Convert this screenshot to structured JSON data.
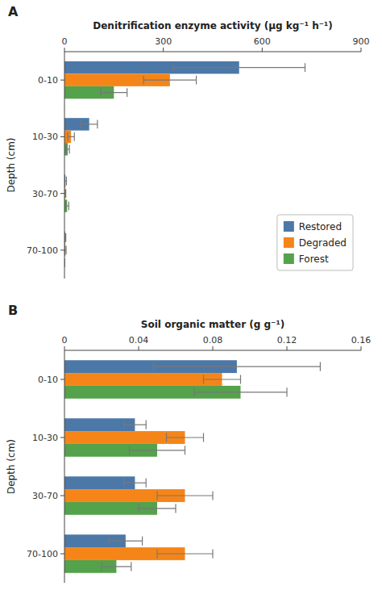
{
  "chart_data": [
    {
      "type": "bar",
      "orientation": "horizontal",
      "title": "A",
      "xlabel": "Denitrification enzyme activity (μg kg⁻¹ h⁻¹)",
      "ylabel": "Depth (cm)",
      "categories": [
        "0-10",
        "10-30",
        "30-70",
        "70-100"
      ],
      "series": [
        {
          "name": "Restored",
          "values": [
            530,
            75,
            3,
            2
          ],
          "errors": [
            200,
            25,
            3,
            2
          ]
        },
        {
          "name": "Degraded",
          "values": [
            320,
            20,
            2,
            3
          ],
          "errors": [
            80,
            10,
            2,
            2
          ]
        },
        {
          "name": "Forest",
          "values": [
            150,
            10,
            8,
            0
          ],
          "errors": [
            40,
            5,
            5,
            0
          ]
        }
      ],
      "xlim": [
        0,
        900
      ],
      "xticks": [
        0,
        300,
        600,
        900
      ],
      "grid": false,
      "legend": "lower right"
    },
    {
      "type": "bar",
      "orientation": "horizontal",
      "title": "B",
      "xlabel": "Soil organic matter (g g⁻¹)",
      "ylabel": "Depth (cm)",
      "categories": [
        "0-10",
        "10-30",
        "30-70",
        "70-100"
      ],
      "series": [
        {
          "name": "Restored",
          "values": [
            0.093,
            0.038,
            0.038,
            0.033
          ],
          "errors": [
            0.045,
            0.006,
            0.006,
            0.009
          ]
        },
        {
          "name": "Degraded",
          "values": [
            0.085,
            0.065,
            0.065,
            0.065
          ],
          "errors": [
            0.01,
            0.01,
            0.015,
            0.015
          ]
        },
        {
          "name": "Forest",
          "values": [
            0.095,
            0.05,
            0.05,
            0.028
          ],
          "errors": [
            0.025,
            0.015,
            0.01,
            0.008
          ]
        }
      ],
      "xlim": [
        0,
        0.16
      ],
      "xticks": [
        0,
        0.04,
        0.08,
        0.12,
        0.16
      ],
      "grid": false
    }
  ]
}
